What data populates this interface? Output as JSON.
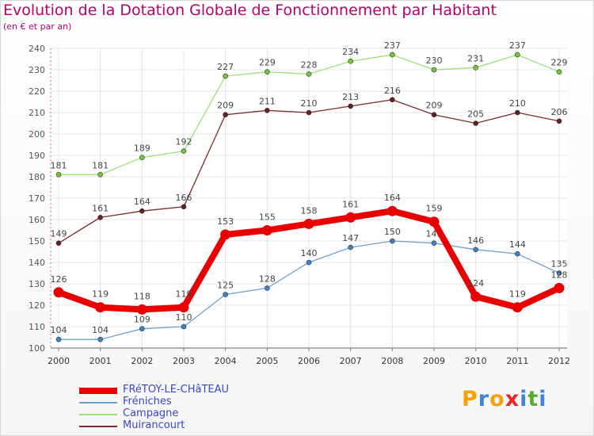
{
  "title": "Evolution de la Dotation Globale de Fonctionnement par Habitant",
  "subtitle": "(en € et par an)",
  "logo": {
    "letters": [
      "P",
      "r",
      "o",
      "x",
      "i",
      "t",
      "i"
    ],
    "colors": [
      "#f6a10a",
      "#3f86d2",
      "#f6a10a",
      "#e8262a",
      "#3f86d2",
      "#5aae32",
      "#3f86d2"
    ]
  },
  "chart_data": {
    "type": "line",
    "title": "Evolution de la Dotation Globale de Fonctionnement par Habitant",
    "xlabel": "",
    "ylabel": "(en € et par an)",
    "ylim": [
      100,
      240
    ],
    "yticks": [
      100,
      110,
      120,
      130,
      140,
      150,
      160,
      170,
      180,
      190,
      200,
      210,
      220,
      230,
      240
    ],
    "categories": [
      "2000",
      "2001",
      "2002",
      "2003",
      "2004",
      "2005",
      "2006",
      "2007",
      "2008",
      "2009",
      "2010",
      "2011",
      "2012"
    ],
    "grid": true,
    "legend_position": "bottom-left",
    "series": [
      {
        "name": "FRéTOY-LE-CHâTEAU",
        "color": "#e80000",
        "bold": true,
        "values": [
          126,
          119,
          118,
          119,
          153,
          155,
          158,
          161,
          164,
          159,
          124,
          119,
          128
        ]
      },
      {
        "name": "Fréniches",
        "color": "#6fa0cf",
        "point": "#3d84c6",
        "values": [
          104,
          104,
          109,
          110,
          125,
          128,
          140,
          147,
          150,
          149,
          146,
          144,
          135
        ]
      },
      {
        "name": "Campagne",
        "color": "#9fe07a",
        "point": "#72c83a",
        "values": [
          181,
          181,
          189,
          192,
          227,
          229,
          228,
          234,
          237,
          230,
          231,
          237,
          229
        ]
      },
      {
        "name": "Muirancourt",
        "color": "#7a2a2a",
        "point": "#6a1f1f",
        "values": [
          149,
          161,
          164,
          166,
          209,
          211,
          210,
          213,
          216,
          209,
          205,
          210,
          206
        ]
      }
    ]
  }
}
